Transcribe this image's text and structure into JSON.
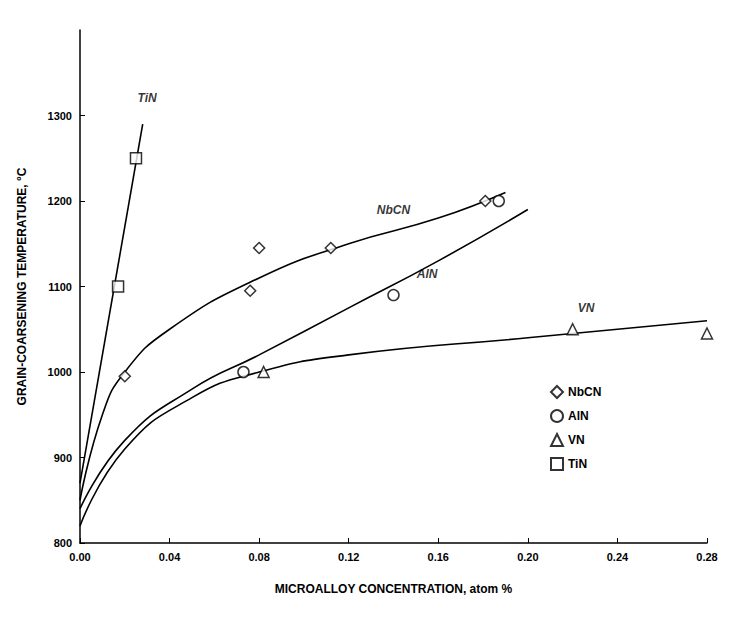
{
  "chart_data": {
    "type": "scatter",
    "x_label": "MICROALLOY CONCENTRATION, atom %",
    "y_label": "GRAIN-COARSENING TEMPERATURE, °C",
    "xlim": [
      0,
      0.28
    ],
    "xticks": [
      {
        "value": 0,
        "label": "0.00"
      },
      0.04,
      0.08,
      0.12,
      0.16,
      {
        "value": 0.2,
        "label": "0.20"
      },
      0.24,
      0.28
    ],
    "ylim": [
      800,
      1400
    ],
    "yticks": [
      800,
      900,
      1000,
      1100,
      1200,
      1300
    ],
    "grid": false,
    "legend": "lower right",
    "series": [
      {
        "name": "NbCN",
        "marker": "diamond",
        "color": "#000000",
        "x": [
          0.02,
          0.076,
          0.08,
          0.112,
          0.181
        ],
        "values": [
          995,
          1095,
          1145,
          1145,
          1200
        ],
        "curve": {
          "x": [
            0,
            0.01,
            0.02,
            0.04,
            0.08,
            0.12,
            0.16,
            0.19
          ],
          "y": [
            850,
            950,
            1000,
            1050,
            1110,
            1150,
            1180,
            1210
          ]
        }
      },
      {
        "name": "AlN",
        "marker": "circle",
        "color": "#000000",
        "x": [
          0.073,
          0.14,
          0.187
        ],
        "values": [
          1000,
          1090,
          1200
        ],
        "curve": {
          "x": [
            0,
            0.02,
            0.05,
            0.08,
            0.12,
            0.16,
            0.2
          ],
          "y": [
            840,
            920,
            980,
            1020,
            1075,
            1130,
            1190
          ]
        }
      },
      {
        "name": "VN",
        "marker": "triangle",
        "color": "#000000",
        "x": [
          0.082,
          0.22,
          0.28
        ],
        "values": [
          1000,
          1050,
          1045
        ],
        "curve": {
          "x": [
            0,
            0.02,
            0.05,
            0.08,
            0.12,
            0.2,
            0.28
          ],
          "y": [
            820,
            910,
            970,
            1000,
            1020,
            1040,
            1060
          ]
        }
      },
      {
        "name": "TiN",
        "marker": "square",
        "color": "#000000",
        "x": [
          0.017,
          0.025
        ],
        "values": [
          1100,
          1250
        ],
        "curve": {
          "x": [
            0,
            0.028
          ],
          "y": [
            870,
            1290
          ]
        }
      }
    ],
    "annotations": [
      {
        "text": "TiN",
        "x": 0.03,
        "y": 1320
      },
      {
        "text": "NbCN",
        "x": 0.14,
        "y": 1190
      },
      {
        "text": "AlN",
        "x": 0.155,
        "y": 1115
      },
      {
        "text": "VN",
        "x": 0.226,
        "y": 1075
      }
    ]
  }
}
